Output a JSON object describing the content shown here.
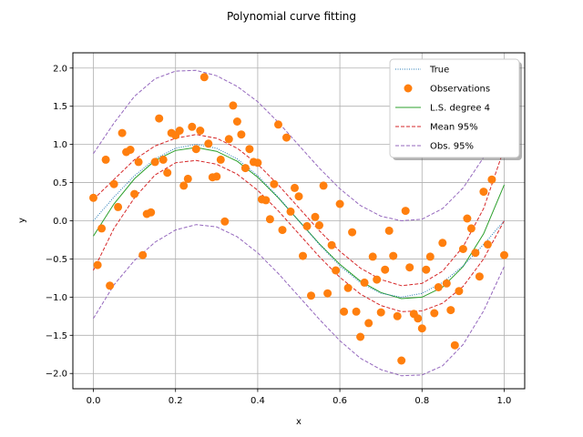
{
  "chart_data": {
    "type": "scatter",
    "title": "Polynomial curve fitting",
    "xlabel": "x",
    "ylabel": "y",
    "xlim": [
      -0.05,
      1.05
    ],
    "ylim": [
      -2.2,
      2.2
    ],
    "xticks": [
      0.0,
      0.2,
      0.4,
      0.6,
      0.8,
      1.0
    ],
    "xtick_labels": [
      "0.0",
      "0.2",
      "0.4",
      "0.6",
      "0.8",
      "1.0"
    ],
    "yticks": [
      -2.0,
      -1.5,
      -1.0,
      -0.5,
      0.0,
      0.5,
      1.0,
      1.5,
      2.0
    ],
    "ytick_labels": [
      "−2.0",
      "−1.5",
      "−1.0",
      "−0.5",
      "0.0",
      "0.5",
      "1.0",
      "1.5",
      "2.0"
    ],
    "grid": true,
    "legend_position": "top-right",
    "legend": [
      {
        "label": "True",
        "style": "dotted-line",
        "color": "#1f77b4"
      },
      {
        "label": "Observations",
        "style": "marker",
        "color": "#ff7f0e"
      },
      {
        "label": "L.S. degree 4",
        "style": "solid-line",
        "color": "#2ca02c"
      },
      {
        "label": "Mean 95%",
        "style": "dashed-line",
        "color": "#d62728"
      },
      {
        "label": "Obs. 95%",
        "style": "dashed-line",
        "color": "#9467bd"
      }
    ],
    "curves": {
      "x": [
        0.0,
        0.05,
        0.1,
        0.15,
        0.2,
        0.25,
        0.3,
        0.35,
        0.4,
        0.45,
        0.5,
        0.55,
        0.6,
        0.65,
        0.7,
        0.75,
        0.8,
        0.85,
        0.9,
        0.95,
        1.0
      ],
      "true": [
        0.0,
        0.31,
        0.59,
        0.81,
        0.95,
        1.0,
        0.95,
        0.81,
        0.59,
        0.31,
        0.0,
        -0.31,
        -0.59,
        -0.81,
        -0.95,
        -1.0,
        -0.95,
        -0.81,
        -0.59,
        -0.31,
        0.0
      ],
      "fit": [
        -0.2,
        0.22,
        0.55,
        0.79,
        0.92,
        0.96,
        0.91,
        0.78,
        0.57,
        0.3,
        0.0,
        -0.3,
        -0.57,
        -0.79,
        -0.94,
        -1.02,
        -1.0,
        -0.87,
        -0.6,
        -0.17,
        0.47
      ],
      "mean_lo": [
        -0.65,
        -0.1,
        0.3,
        0.6,
        0.76,
        0.79,
        0.74,
        0.61,
        0.4,
        0.13,
        -0.17,
        -0.47,
        -0.74,
        -0.96,
        -1.11,
        -1.19,
        -1.18,
        -1.08,
        -0.86,
        -0.5,
        0.0
      ],
      "mean_hi": [
        0.28,
        0.54,
        0.8,
        0.98,
        1.08,
        1.13,
        1.08,
        0.95,
        0.74,
        0.47,
        0.17,
        -0.13,
        -0.4,
        -0.62,
        -0.77,
        -0.85,
        -0.82,
        -0.66,
        -0.34,
        0.16,
        0.95
      ],
      "obs_lo": [
        -1.28,
        -0.84,
        -0.52,
        -0.28,
        -0.12,
        -0.05,
        -0.08,
        -0.21,
        -0.42,
        -0.69,
        -0.99,
        -1.29,
        -1.57,
        -1.8,
        -1.95,
        -2.03,
        -2.02,
        -1.9,
        -1.62,
        -1.18,
        -0.6
      ],
      "obs_hi": [
        0.88,
        1.28,
        1.63,
        1.86,
        1.96,
        1.97,
        1.9,
        1.76,
        1.56,
        1.29,
        0.99,
        0.69,
        0.42,
        0.2,
        0.06,
        0.0,
        0.02,
        0.16,
        0.43,
        0.83,
        1.3
      ]
    },
    "observations": [
      [
        0.0,
        0.3
      ],
      [
        0.01,
        -0.58
      ],
      [
        0.02,
        -0.1
      ],
      [
        0.03,
        0.8
      ],
      [
        0.04,
        -0.85
      ],
      [
        0.05,
        0.48
      ],
      [
        0.06,
        0.18
      ],
      [
        0.07,
        1.15
      ],
      [
        0.08,
        0.9
      ],
      [
        0.09,
        0.93
      ],
      [
        0.1,
        0.35
      ],
      [
        0.11,
        0.77
      ],
      [
        0.12,
        -0.45
      ],
      [
        0.13,
        0.09
      ],
      [
        0.14,
        0.11
      ],
      [
        0.15,
        0.77
      ],
      [
        0.16,
        1.34
      ],
      [
        0.17,
        0.8
      ],
      [
        0.18,
        0.63
      ],
      [
        0.19,
        1.15
      ],
      [
        0.2,
        1.12
      ],
      [
        0.21,
        1.18
      ],
      [
        0.22,
        0.46
      ],
      [
        0.23,
        0.55
      ],
      [
        0.24,
        1.23
      ],
      [
        0.25,
        0.94
      ],
      [
        0.26,
        1.18
      ],
      [
        0.27,
        1.88
      ],
      [
        0.28,
        1.01
      ],
      [
        0.29,
        0.57
      ],
      [
        0.3,
        0.58
      ],
      [
        0.31,
        0.8
      ],
      [
        0.32,
        -0.01
      ],
      [
        0.33,
        1.07
      ],
      [
        0.34,
        1.51
      ],
      [
        0.35,
        1.3
      ],
      [
        0.36,
        1.13
      ],
      [
        0.37,
        0.69
      ],
      [
        0.38,
        0.94
      ],
      [
        0.39,
        0.77
      ],
      [
        0.4,
        0.76
      ],
      [
        0.41,
        0.28
      ],
      [
        0.42,
        0.27
      ],
      [
        0.43,
        0.02
      ],
      [
        0.44,
        0.48
      ],
      [
        0.45,
        1.26
      ],
      [
        0.46,
        -0.12
      ],
      [
        0.47,
        1.09
      ],
      [
        0.48,
        0.12
      ],
      [
        0.49,
        0.43
      ],
      [
        0.5,
        0.32
      ],
      [
        0.51,
        -0.46
      ],
      [
        0.52,
        -0.07
      ],
      [
        0.53,
        -0.98
      ],
      [
        0.54,
        0.05
      ],
      [
        0.55,
        -0.06
      ],
      [
        0.56,
        0.46
      ],
      [
        0.57,
        -0.95
      ],
      [
        0.58,
        -0.32
      ],
      [
        0.59,
        -0.65
      ],
      [
        0.6,
        0.22
      ],
      [
        0.61,
        -1.19
      ],
      [
        0.62,
        -0.88
      ],
      [
        0.63,
        -0.15
      ],
      [
        0.64,
        -1.19
      ],
      [
        0.65,
        -1.52
      ],
      [
        0.66,
        -0.81
      ],
      [
        0.67,
        -1.34
      ],
      [
        0.68,
        -0.47
      ],
      [
        0.69,
        -0.77
      ],
      [
        0.7,
        -1.2
      ],
      [
        0.71,
        -0.64
      ],
      [
        0.72,
        -0.13
      ],
      [
        0.73,
        -0.46
      ],
      [
        0.74,
        -1.25
      ],
      [
        0.75,
        -1.83
      ],
      [
        0.76,
        0.13
      ],
      [
        0.77,
        -0.61
      ],
      [
        0.78,
        -1.22
      ],
      [
        0.79,
        -1.28
      ],
      [
        0.8,
        -1.41
      ],
      [
        0.81,
        -0.64
      ],
      [
        0.82,
        -0.47
      ],
      [
        0.83,
        -1.21
      ],
      [
        0.84,
        -0.87
      ],
      [
        0.85,
        -0.29
      ],
      [
        0.86,
        -0.82
      ],
      [
        0.87,
        -1.17
      ],
      [
        0.88,
        -1.63
      ],
      [
        0.89,
        -0.92
      ],
      [
        0.9,
        -0.37
      ],
      [
        0.91,
        0.03
      ],
      [
        0.92,
        -0.1
      ],
      [
        0.93,
        -0.42
      ],
      [
        0.94,
        -0.73
      ],
      [
        0.95,
        0.38
      ],
      [
        0.96,
        -0.31
      ],
      [
        0.97,
        0.54
      ],
      [
        0.99,
        0.93
      ],
      [
        1.0,
        -0.45
      ]
    ]
  }
}
